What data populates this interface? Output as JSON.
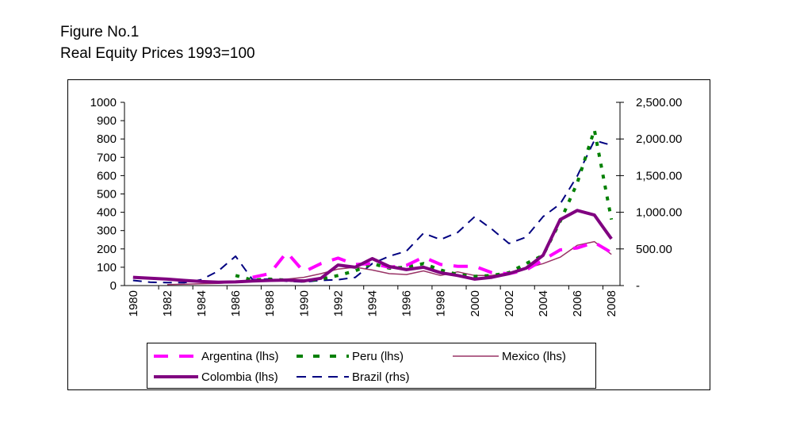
{
  "figure": {
    "title": "Figure No.1",
    "subtitle": "Real Equity Prices 1993=100"
  },
  "chart_data": {
    "type": "line",
    "title": "Real Equity Prices 1993=100",
    "xlabel": "",
    "ylabel": "",
    "x": [
      1980,
      1981,
      1982,
      1983,
      1984,
      1985,
      1986,
      1987,
      1988,
      1989,
      1990,
      1991,
      1992,
      1993,
      1994,
      1995,
      1996,
      1997,
      1998,
      1999,
      2000,
      2001,
      2002,
      2003,
      2004,
      2005,
      2006,
      2007,
      2008
    ],
    "x_tick_labels": [
      "1980",
      "1982",
      "1984",
      "1986",
      "1988",
      "1990",
      "1992",
      "1994",
      "1996",
      "1998",
      "2000",
      "2002",
      "2004",
      "2006",
      "2008"
    ],
    "ylim": [
      0,
      1000
    ],
    "y_tick_labels": [
      "0",
      "100",
      "200",
      "300",
      "400",
      "500",
      "600",
      "700",
      "800",
      "900",
      "1000"
    ],
    "y2lim": [
      0,
      2500
    ],
    "y2_tick_labels": [
      "-",
      "500.00",
      "1,000.00",
      "1,500.00",
      "2,000.00",
      "2,500.00"
    ],
    "grid": false,
    "legend_position": "bottom",
    "series": [
      {
        "name": "Argentina (lhs)",
        "axis": "left",
        "color": "#ff00ff",
        "style": "long-dash",
        "width": 4,
        "values": [
          null,
          null,
          null,
          null,
          null,
          null,
          null,
          45,
          65,
          182,
          75,
          120,
          150,
          115,
          120,
          100,
          110,
          155,
          115,
          105,
          105,
          70,
          65,
          85,
          140,
          195,
          205,
          235,
          180
        ]
      },
      {
        "name": "Peru (lhs)",
        "axis": "left",
        "color": "#008000",
        "style": "dot",
        "width": 4,
        "values": [
          null,
          null,
          null,
          null,
          null,
          null,
          55,
          30,
          35,
          30,
          25,
          35,
          55,
          80,
          120,
          95,
          100,
          120,
          85,
          60,
          50,
          55,
          70,
          120,
          165,
          350,
          560,
          850,
          360
        ]
      },
      {
        "name": "Mexico (lhs)",
        "axis": "left",
        "color": "#993366",
        "style": "solid",
        "width": 1.5,
        "values": [
          null,
          null,
          5,
          8,
          10,
          12,
          18,
          25,
          30,
          35,
          45,
          65,
          90,
          100,
          85,
          65,
          60,
          80,
          55,
          75,
          55,
          55,
          70,
          95,
          120,
          155,
          220,
          240,
          170
        ]
      },
      {
        "name": "Colombia (lhs)",
        "axis": "left",
        "color": "#800080",
        "style": "solid",
        "width": 4,
        "values": [
          45,
          40,
          35,
          28,
          22,
          18,
          20,
          25,
          28,
          30,
          25,
          40,
          112,
          100,
          147,
          104,
          87,
          100,
          70,
          55,
          35,
          45,
          65,
          95,
          165,
          360,
          410,
          385,
          255
        ]
      },
      {
        "name": "Brazil (rhs)",
        "axis": "right",
        "color": "#000080",
        "style": "dash",
        "width": 2,
        "values": [
          70,
          45,
          40,
          40,
          80,
          200,
          400,
          80,
          90,
          60,
          50,
          70,
          80,
          110,
          300,
          400,
          470,
          714,
          628,
          725,
          940,
          770,
          575,
          660,
          940,
          1115,
          1495,
          1980,
          1915
        ]
      }
    ]
  }
}
